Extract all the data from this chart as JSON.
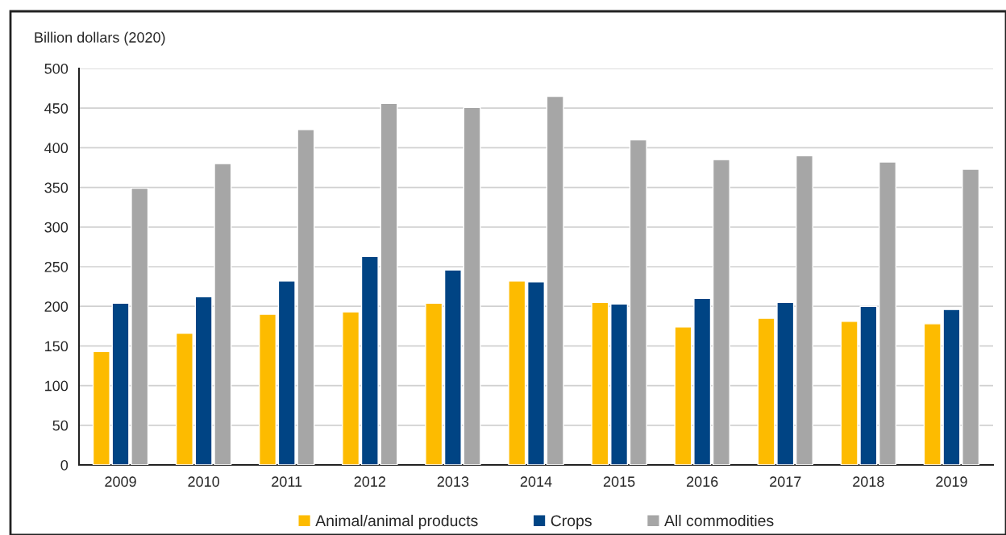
{
  "chart_data": {
    "type": "bar",
    "ylabel": "Billion dollars (2020)",
    "categories": [
      "2009",
      "2010",
      "2011",
      "2012",
      "2013",
      "2014",
      "2015",
      "2016",
      "2017",
      "2018",
      "2019"
    ],
    "series": [
      {
        "name": "Animal/animal products",
        "color": "#fdbb00",
        "values": [
          143,
          166,
          190,
          193,
          204,
          232,
          205,
          174,
          185,
          181,
          178
        ]
      },
      {
        "name": "Crops",
        "color": "#004484",
        "values": [
          204,
          212,
          232,
          263,
          246,
          231,
          203,
          210,
          205,
          200,
          196
        ]
      },
      {
        "name": "All commodities",
        "color": "#a6a6a6",
        "values": [
          349,
          380,
          423,
          456,
          451,
          465,
          410,
          385,
          390,
          382,
          373
        ]
      }
    ],
    "ylim": [
      0,
      500
    ],
    "yticks": [
      0,
      50,
      100,
      150,
      200,
      250,
      300,
      350,
      400,
      450,
      500
    ],
    "grid": "y",
    "legend": "bottom"
  }
}
